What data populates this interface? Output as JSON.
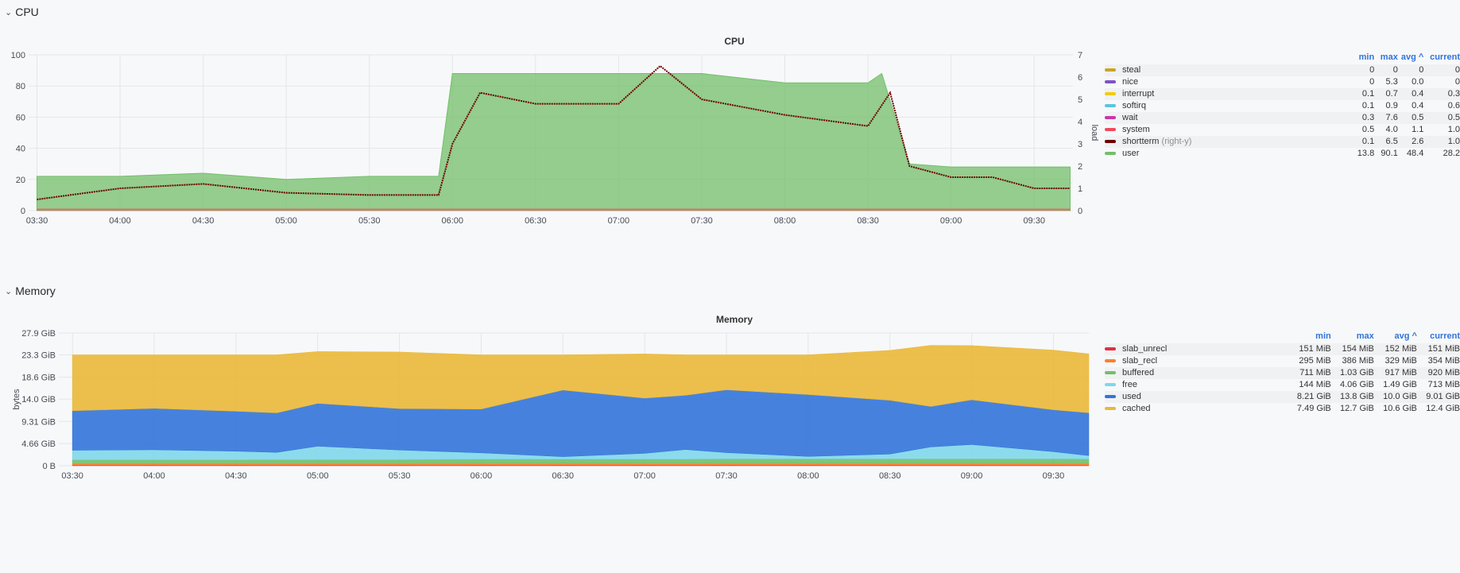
{
  "rows": {
    "cpu": {
      "label": "CPU",
      "chevron": "⌄"
    },
    "memory": {
      "label": "Memory",
      "chevron": "⌄"
    }
  },
  "cpu_panel": {
    "title": "CPU",
    "legend_headers": {
      "min": "min",
      "max": "max",
      "avg": "avg ^",
      "current": "current"
    },
    "legend": [
      {
        "name": "steal",
        "note": "",
        "color": "#c9a42b",
        "min": "0",
        "max": "0",
        "avg": "0",
        "current": "0"
      },
      {
        "name": "nice",
        "note": "",
        "color": "#7d54c4",
        "min": "0",
        "max": "5.3",
        "avg": "0.0",
        "current": "0"
      },
      {
        "name": "interrupt",
        "note": "",
        "color": "#f2cc0c",
        "min": "0.1",
        "max": "0.7",
        "avg": "0.4",
        "current": "0.3"
      },
      {
        "name": "softirq",
        "note": "",
        "color": "#5bc4e0",
        "min": "0.1",
        "max": "0.9",
        "avg": "0.4",
        "current": "0.6"
      },
      {
        "name": "wait",
        "note": "",
        "color": "#c838a8",
        "min": "0.3",
        "max": "7.6",
        "avg": "0.5",
        "current": "0.5"
      },
      {
        "name": "system",
        "note": "",
        "color": "#f2495c",
        "min": "0.5",
        "max": "4.0",
        "avg": "1.1",
        "current": "1.0"
      },
      {
        "name": "shortterm",
        "note": "(right-y)",
        "color": "#6e0000",
        "min": "0.1",
        "max": "6.5",
        "avg": "2.6",
        "current": "1.0"
      },
      {
        "name": "user",
        "note": "",
        "color": "#73bf69",
        "min": "13.8",
        "max": "90.1",
        "avg": "48.4",
        "current": "28.2"
      }
    ]
  },
  "memory_panel": {
    "title": "Memory",
    "legend_headers": {
      "min": "min",
      "max": "max",
      "avg": "avg ^",
      "current": "current"
    },
    "legend": [
      {
        "name": "slab_unrecl",
        "note": "",
        "color": "#e02f44",
        "min": "151 MiB",
        "max": "154 MiB",
        "avg": "152 MiB",
        "current": "151 MiB"
      },
      {
        "name": "slab_recl",
        "note": "",
        "color": "#ff7f2a",
        "min": "295 MiB",
        "max": "386 MiB",
        "avg": "329 MiB",
        "current": "354 MiB"
      },
      {
        "name": "buffered",
        "note": "",
        "color": "#73bf69",
        "min": "711 MiB",
        "max": "1.03 GiB",
        "avg": "917 MiB",
        "current": "920 MiB"
      },
      {
        "name": "free",
        "note": "",
        "color": "#7fd7ea",
        "min": "144 MiB",
        "max": "4.06 GiB",
        "avg": "1.49 GiB",
        "current": "713 MiB"
      },
      {
        "name": "used",
        "note": "",
        "color": "#3274d9",
        "min": "8.21 GiB",
        "max": "13.8 GiB",
        "avg": "10.0 GiB",
        "current": "9.01 GiB"
      },
      {
        "name": "cached",
        "note": "",
        "color": "#eab839",
        "min": "7.49 GiB",
        "max": "12.7 GiB",
        "avg": "10.6 GiB",
        "current": "12.4 GiB"
      }
    ]
  },
  "chart_data": [
    {
      "type": "area",
      "title": "CPU",
      "xlabel": "",
      "ylabel": "",
      "y2label": "load",
      "ylim": [
        0,
        100
      ],
      "y2lim": [
        0,
        7
      ],
      "yticks": [
        "0",
        "20",
        "40",
        "60",
        "80",
        "100"
      ],
      "y2ticks": [
        "0",
        "1",
        "2",
        "3",
        "4",
        "5",
        "6",
        "7"
      ],
      "xticks": [
        "03:30",
        "04:00",
        "04:30",
        "05:00",
        "05:30",
        "06:00",
        "06:30",
        "07:00",
        "07:30",
        "08:00",
        "08:30",
        "09:00",
        "09:30"
      ],
      "grid": true,
      "legend_position": "right",
      "series": [
        {
          "name": "user",
          "axis": "left",
          "x": [
            "03:30",
            "04:00",
            "04:30",
            "05:00",
            "05:30",
            "05:55",
            "06:00",
            "06:30",
            "07:00",
            "07:30",
            "08:00",
            "08:30",
            "08:35",
            "08:45",
            "09:00",
            "09:30",
            "09:43"
          ],
          "values": [
            22,
            22,
            24,
            20,
            22,
            22,
            88,
            88,
            88,
            88,
            82,
            82,
            88,
            30,
            28,
            28,
            28
          ]
        },
        {
          "name": "shortterm",
          "axis": "right",
          "x": [
            "03:30",
            "04:00",
            "04:30",
            "05:00",
            "05:30",
            "05:55",
            "06:00",
            "06:10",
            "06:30",
            "07:00",
            "07:15",
            "07:30",
            "08:00",
            "08:30",
            "08:38",
            "08:45",
            "09:00",
            "09:15",
            "09:30",
            "09:43"
          ],
          "values": [
            0.5,
            1.0,
            1.2,
            0.8,
            0.7,
            0.7,
            3.0,
            5.3,
            4.8,
            4.8,
            6.5,
            5.0,
            4.3,
            3.8,
            5.3,
            2.0,
            1.5,
            1.5,
            1.0,
            1.0
          ]
        }
      ]
    },
    {
      "type": "area",
      "title": "Memory",
      "xlabel": "",
      "ylabel": "bytes",
      "yticks": [
        "0 B",
        "4.66 GiB",
        "9.31 GiB",
        "14.0 GiB",
        "18.6 GiB",
        "23.3 GiB",
        "27.9 GiB"
      ],
      "ylim_gib": [
        0,
        27.9
      ],
      "xticks": [
        "03:30",
        "04:00",
        "04:30",
        "05:00",
        "05:30",
        "06:00",
        "06:30",
        "07:00",
        "07:30",
        "08:00",
        "08:30",
        "09:00",
        "09:30"
      ],
      "grid": true,
      "legend_position": "right",
      "stacked": true,
      "x": [
        "03:30",
        "04:00",
        "04:30",
        "04:45",
        "05:00",
        "05:30",
        "06:00",
        "06:30",
        "07:00",
        "07:15",
        "07:30",
        "08:00",
        "08:30",
        "08:45",
        "09:00",
        "09:30",
        "09:43"
      ],
      "series": [
        {
          "name": "slab_unrecl",
          "values_gib": [
            0.15,
            0.15,
            0.15,
            0.15,
            0.15,
            0.15,
            0.15,
            0.15,
            0.15,
            0.15,
            0.15,
            0.15,
            0.15,
            0.15,
            0.15,
            0.15,
            0.15
          ]
        },
        {
          "name": "slab_recl",
          "values_gib": [
            0.3,
            0.3,
            0.3,
            0.3,
            0.3,
            0.3,
            0.35,
            0.35,
            0.35,
            0.35,
            0.35,
            0.35,
            0.35,
            0.35,
            0.35,
            0.35,
            0.35
          ]
        },
        {
          "name": "buffered",
          "values_gib": [
            0.8,
            0.8,
            0.8,
            0.85,
            0.85,
            0.85,
            0.9,
            0.9,
            0.9,
            0.9,
            0.95,
            0.95,
            0.95,
            0.95,
            0.95,
            0.95,
            0.92
          ]
        },
        {
          "name": "free",
          "values_gib": [
            2.0,
            2.1,
            1.8,
            1.5,
            2.8,
            2.0,
            1.3,
            0.5,
            1.2,
            2.0,
            1.3,
            0.5,
            1.0,
            2.5,
            3.0,
            1.5,
            0.7
          ]
        },
        {
          "name": "used",
          "values_gib": [
            8.3,
            8.7,
            8.4,
            8.3,
            9.0,
            8.7,
            9.2,
            14.0,
            11.6,
            11.4,
            13.2,
            13.0,
            11.3,
            8.5,
            9.4,
            8.8,
            9.0
          ]
        },
        {
          "name": "cached",
          "values_gib": [
            11.75,
            11.25,
            11.85,
            12.2,
            10.9,
            11.9,
            11.4,
            7.4,
            9.3,
            8.5,
            7.35,
            8.35,
            10.5,
            12.85,
            11.4,
            12.55,
            12.4
          ]
        }
      ]
    }
  ]
}
